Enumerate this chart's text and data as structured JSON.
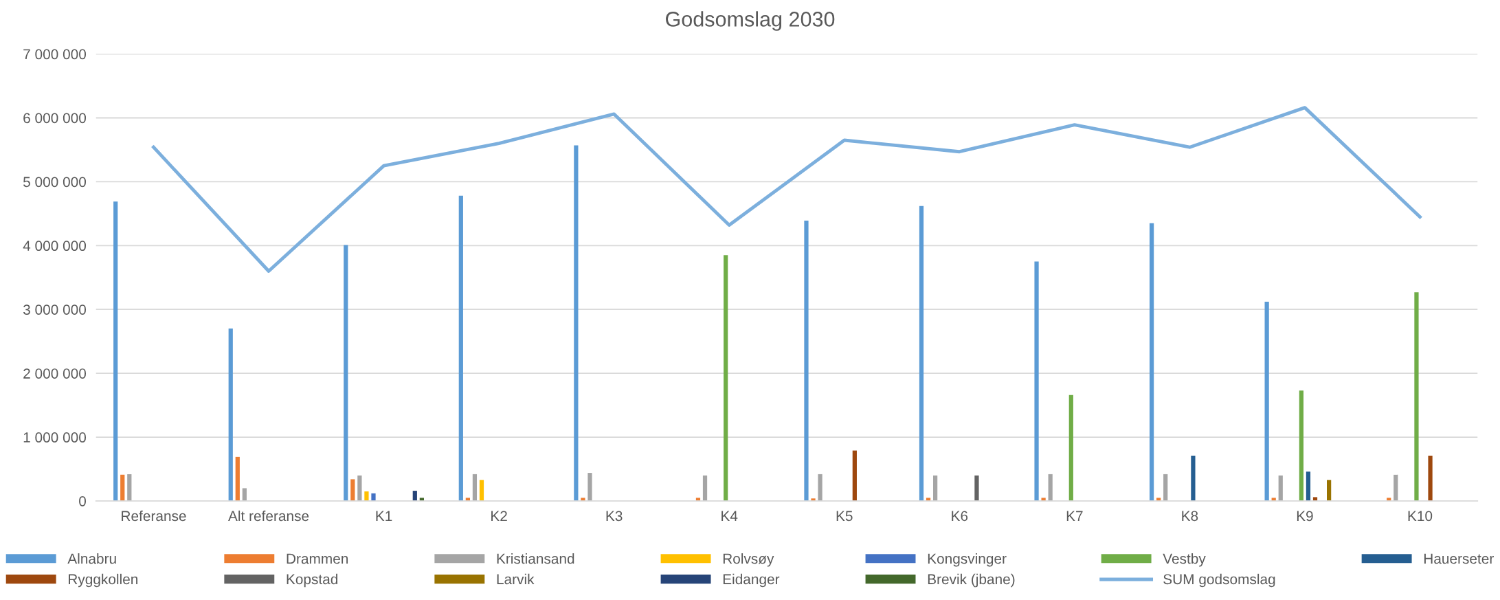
{
  "chart_data": {
    "type": "bar",
    "title": "Godsomslag 2030",
    "categories": [
      "Referanse",
      "Alt referanse",
      "K1",
      "K2",
      "K3",
      "K4",
      "K5",
      "K6",
      "K7",
      "K8",
      "K9",
      "K10"
    ],
    "series": [
      {
        "name": "Alnabru",
        "color": "#5b9bd5",
        "values": [
          4690000,
          2700000,
          4010000,
          4780000,
          5570000,
          null,
          4390000,
          4620000,
          3750000,
          4350000,
          3120000,
          null
        ]
      },
      {
        "name": "Drammen",
        "color": "#ed7d31",
        "values": [
          410000,
          690000,
          340000,
          50000,
          50000,
          50000,
          40000,
          50000,
          50000,
          50000,
          50000,
          50000
        ]
      },
      {
        "name": "Kristiansand",
        "color": "#a5a5a5",
        "values": [
          420000,
          200000,
          400000,
          420000,
          440000,
          400000,
          420000,
          400000,
          420000,
          420000,
          400000,
          410000
        ]
      },
      {
        "name": "Rolvsøy",
        "color": "#ffc000",
        "values": [
          null,
          null,
          150000,
          330000,
          null,
          null,
          null,
          null,
          null,
          null,
          null,
          null
        ]
      },
      {
        "name": "Kongsvinger",
        "color": "#4472c4",
        "values": [
          null,
          null,
          120000,
          null,
          null,
          null,
          null,
          null,
          null,
          null,
          null,
          null
        ]
      },
      {
        "name": "Vestby",
        "color": "#70ad47",
        "values": [
          null,
          null,
          null,
          null,
          null,
          3850000,
          null,
          null,
          1660000,
          null,
          1730000,
          3270000
        ]
      },
      {
        "name": "Hauerseter",
        "color": "#255e91",
        "values": [
          null,
          null,
          null,
          null,
          null,
          null,
          null,
          null,
          null,
          710000,
          460000,
          null
        ]
      },
      {
        "name": "Ryggkollen",
        "color": "#9e480e",
        "values": [
          null,
          null,
          null,
          null,
          null,
          null,
          790000,
          null,
          null,
          null,
          60000,
          710000
        ]
      },
      {
        "name": "Kopstad",
        "color": "#636363",
        "values": [
          null,
          null,
          null,
          null,
          null,
          null,
          null,
          400000,
          null,
          null,
          null,
          null
        ]
      },
      {
        "name": "Larvik",
        "color": "#997300",
        "values": [
          null,
          null,
          null,
          null,
          null,
          null,
          null,
          null,
          null,
          null,
          330000,
          null
        ]
      },
      {
        "name": "Eidanger",
        "color": "#264478",
        "values": [
          null,
          null,
          160000,
          null,
          null,
          null,
          null,
          null,
          null,
          null,
          null,
          null
        ]
      },
      {
        "name": "Brevik (jbane)",
        "color": "#43682b",
        "values": [
          null,
          null,
          50000,
          null,
          null,
          null,
          null,
          null,
          null,
          null,
          null,
          null
        ]
      },
      {
        "name": "SUM godsomslag",
        "type": "line",
        "color": "#7cafdd",
        "values": [
          5540000,
          3600000,
          5250000,
          5600000,
          6060000,
          4320000,
          5650000,
          5470000,
          5890000,
          5540000,
          6160000,
          4450000
        ]
      }
    ],
    "ylim": [
      0,
      7000000
    ],
    "yticks": [
      {
        "value": 0,
        "label": "0"
      },
      {
        "value": 1000000,
        "label": "1 000 000"
      },
      {
        "value": 2000000,
        "label": "2 000 000"
      },
      {
        "value": 3000000,
        "label": "3 000 000"
      },
      {
        "value": 4000000,
        "label": "4 000 000"
      },
      {
        "value": 5000000,
        "label": "5 000 000"
      },
      {
        "value": 6000000,
        "label": "6 000 000"
      },
      {
        "value": 7000000,
        "label": "7 000 000"
      }
    ],
    "grid": "y",
    "legend": "bottom",
    "marker": "none",
    "line_style": "solid"
  }
}
